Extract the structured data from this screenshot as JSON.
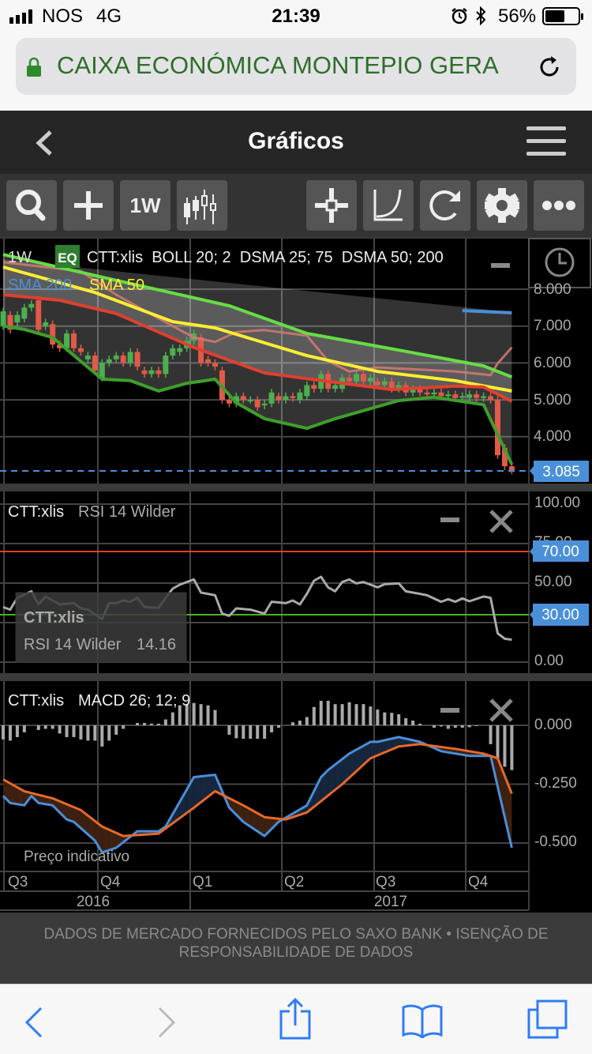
{
  "status_bar": {
    "carrier": "NOS",
    "network": "4G",
    "time": "21:39",
    "battery": "56%",
    "battery_level": 0.56,
    "icons": [
      "signal-icon",
      "alarm-icon",
      "bluetooth-icon",
      "battery-icon"
    ]
  },
  "browser": {
    "url_text": "CAIXA ECONÓMICA MONTEPIO GERA",
    "secure": true,
    "lock_color": "#2f8a2a"
  },
  "header": {
    "title": "Gráficos"
  },
  "toolbar": {
    "period_label": "1W",
    "buttons": [
      "search-icon",
      "add-icon",
      "period-button",
      "candlestick-icon",
      "crosshair-icon",
      "curve-icon",
      "refresh-icon",
      "gear-icon",
      "more-icon"
    ]
  },
  "main_panel": {
    "period": "1W",
    "badge": "EQ",
    "legend": "CTT:xlis  BOLL 20; 2  DSMA 25; 75  DSMA 50; 200",
    "sma200_label": "SMA 200",
    "sma50_label": "SMA 50",
    "yticks": [
      "8.000",
      "7.000",
      "6.000",
      "5.000",
      "4.000"
    ],
    "last_price": "3.085"
  },
  "rsi_panel": {
    "symbol": "CTT:xlis",
    "label": "RSI 14 Wilder",
    "yticks": [
      "100.00",
      "75.00",
      "50.00",
      "0.00"
    ],
    "upper_level": "70.00",
    "lower_level": "30.00",
    "tooltip": {
      "symbol": "CTT:xlis",
      "label": "RSI 14 Wilder",
      "value": "14.16"
    }
  },
  "macd_panel": {
    "symbol": "CTT:xlis",
    "label": "MACD 26; 12; 9",
    "yticks": [
      "0.000",
      "-0.250",
      "-0.500"
    ],
    "note": "Preço indicativo"
  },
  "time_axis": {
    "quarters": [
      "Q3",
      "Q4",
      "Q1",
      "Q2",
      "Q3",
      "Q4"
    ],
    "years": [
      "2016",
      "2017"
    ]
  },
  "footer": {
    "line1": "DADOS DE MERCADO FORNECIDOS PELO SAXO BANK • ISENÇÃO DE",
    "line2": "RESPONSABILIDADE DE DADOS"
  },
  "colors": {
    "accent": "#4a90d9",
    "up": "#4caf50",
    "down": "#e05a4a",
    "boll_upper": "#66dd44",
    "boll_lower": "#3f9f2a",
    "sma50": "#ffee33",
    "dsma": "#e04030",
    "dsma_upper": "#d77a72",
    "sma200": "#4a8fd8",
    "macd": "#4a8fd8",
    "signal": "#e8692a"
  },
  "chart_data": [
    {
      "type": "candlestick",
      "period": "1W",
      "weeks": {
        "from": "2016-W26",
        "to": "2017-W46"
      },
      "ylim": [
        2.73,
        9.37
      ],
      "grid": true,
      "candles_open_close": [
        [
          7.0,
          7.4
        ],
        [
          7.3,
          6.9
        ],
        [
          7.1,
          7.3
        ],
        [
          7.2,
          7.5
        ],
        [
          7.5,
          7.6
        ],
        [
          7.7,
          6.9
        ],
        [
          7.0,
          7.1
        ],
        [
          7.05,
          6.5
        ],
        [
          6.5,
          6.4
        ],
        [
          6.4,
          6.8
        ],
        [
          6.8,
          6.4
        ],
        [
          6.4,
          6.3
        ],
        [
          6.1,
          6.2
        ],
        [
          6.2,
          5.8
        ],
        [
          5.6,
          6.0
        ],
        [
          6.0,
          6.1
        ],
        [
          6.1,
          6.2
        ],
        [
          6.2,
          6.0
        ],
        [
          6.0,
          6.3
        ],
        [
          6.3,
          5.9
        ],
        [
          5.8,
          5.7
        ],
        [
          5.7,
          5.8
        ],
        [
          5.8,
          5.7
        ],
        [
          5.7,
          6.2
        ],
        [
          6.2,
          6.4
        ],
        [
          6.3,
          6.4
        ],
        [
          6.4,
          6.6
        ],
        [
          6.6,
          6.8
        ],
        [
          6.7,
          6.0
        ],
        [
          6.1,
          6.0
        ],
        [
          6.0,
          5.9
        ],
        [
          5.8,
          5.0
        ],
        [
          5.0,
          4.9
        ],
        [
          4.9,
          5.1
        ],
        [
          5.1,
          5.0
        ],
        [
          5.0,
          5.0
        ],
        [
          5.0,
          4.8
        ],
        [
          4.85,
          4.9
        ],
        [
          4.9,
          5.2
        ],
        [
          5.1,
          5.0
        ],
        [
          5.0,
          5.1
        ],
        [
          5.1,
          5.05
        ],
        [
          5.0,
          5.2
        ],
        [
          5.1,
          5.4
        ],
        [
          5.4,
          5.3
        ],
        [
          5.3,
          5.7
        ],
        [
          5.7,
          5.3
        ],
        [
          5.3,
          5.4
        ],
        [
          5.3,
          5.6
        ],
        [
          5.6,
          5.5
        ],
        [
          5.5,
          5.7
        ],
        [
          5.7,
          5.5
        ],
        [
          5.5,
          5.6
        ],
        [
          5.5,
          5.4
        ],
        [
          5.4,
          5.5
        ],
        [
          5.5,
          5.3
        ],
        [
          5.3,
          5.4
        ],
        [
          5.4,
          5.2
        ],
        [
          5.2,
          5.3
        ],
        [
          5.3,
          5.2
        ],
        [
          5.2,
          5.15
        ],
        [
          5.15,
          5.2
        ],
        [
          5.2,
          5.1
        ],
        [
          5.1,
          5.15
        ],
        [
          5.15,
          5.05
        ],
        [
          5.1,
          5.1
        ],
        [
          5.05,
          5.15
        ],
        [
          5.15,
          5.05
        ],
        [
          5.05,
          5.1
        ],
        [
          5.1,
          5.0
        ],
        [
          5.0,
          3.5
        ],
        [
          3.7,
          3.2
        ],
        [
          3.2,
          3.085
        ]
      ],
      "series": [
        {
          "key": "boll_upper",
          "points": [
            [
              "2016-W26",
              8.94
            ],
            [
              "2016-W42",
              8.24
            ],
            [
              "2017-W06",
              7.55
            ],
            [
              "2017-W17",
              6.8
            ],
            [
              "2017-W30",
              6.35
            ],
            [
              "2017-W42",
              5.92
            ],
            [
              "2017-W46",
              5.62
            ]
          ]
        },
        {
          "key": "sma50",
          "name": "SMA 50",
          "points": [
            [
              "2016-W26",
              8.6
            ],
            [
              "2016-W39",
              7.91
            ],
            [
              "2016-W50",
              7.12
            ],
            [
              "2017-W04",
              6.95
            ],
            [
              "2017-W17",
              6.2
            ],
            [
              "2017-W27",
              5.77
            ],
            [
              "2017-W38",
              5.52
            ],
            [
              "2017-W46",
              5.24
            ]
          ]
        },
        {
          "key": "dsma",
          "points": [
            [
              "2016-W26",
              7.85
            ],
            [
              "2016-W34",
              7.7
            ],
            [
              "2016-W42",
              7.34
            ],
            [
              "2017-W01",
              6.42
            ],
            [
              "2017-W11",
              5.73
            ],
            [
              "2017-W22",
              5.45
            ],
            [
              "2017-W29",
              5.28
            ],
            [
              "2017-W38",
              5.37
            ],
            [
              "2017-W42",
              5.35
            ],
            [
              "2017-W46",
              4.96
            ]
          ]
        },
        {
          "key": "boll_lower",
          "points": [
            [
              "2016-W26",
              7.0
            ],
            [
              "2016-W29",
              6.91
            ],
            [
              "2016-W33",
              6.69
            ],
            [
              "2016-W40",
              5.56
            ],
            [
              "2016-W44",
              5.52
            ],
            [
              "2016-W48",
              5.24
            ],
            [
              "2016-W52",
              5.45
            ],
            [
              "2017-W04",
              5.56
            ],
            [
              "2017-W07",
              4.92
            ],
            [
              "2017-W11",
              4.49
            ],
            [
              "2017-W17",
              4.23
            ],
            [
              "2017-W21",
              4.49
            ],
            [
              "2017-W30",
              4.98
            ],
            [
              "2017-W35",
              5.07
            ],
            [
              "2017-W42",
              4.87
            ],
            [
              "2017-W44",
              4.06
            ],
            [
              "2017-W46",
              3.25
            ]
          ]
        },
        {
          "key": "dsma_upper",
          "points": [
            [
              "2016-W26",
              8.73
            ],
            [
              "2016-W37",
              8.49
            ],
            [
              "2016-W42",
              7.85
            ],
            [
              "2016-W48",
              7.21
            ],
            [
              "2017-W01",
              6.69
            ],
            [
              "2017-W04",
              6.57
            ],
            [
              "2017-W07",
              6.84
            ],
            [
              "2017-W11",
              6.89
            ],
            [
              "2017-W17",
              6.74
            ],
            [
              "2017-W20",
              6.05
            ],
            [
              "2017-W23",
              5.77
            ],
            [
              "2017-W27",
              5.88
            ],
            [
              "2017-W38",
              5.77
            ],
            [
              "2017-W43",
              5.67
            ],
            [
              "2017-W44",
              5.99
            ],
            [
              "2017-W46",
              6.42
            ]
          ]
        },
        {
          "key": "sma200",
          "name": "SMA 200",
          "points": [
            [
              "2017-W39",
              7.42
            ],
            [
              "2017-W46",
              7.36
            ]
          ]
        },
        {
          "key": "envelope_top",
          "points": [
            [
              "2016-W26",
              8.8
            ],
            [
              "2017-W46",
              7.38
            ]
          ]
        }
      ]
    },
    {
      "type": "line",
      "name": "RSI 14 Wilder",
      "ylim": [
        0,
        100
      ],
      "levels": [
        70,
        30
      ],
      "points": [
        [
          "2016-W26",
          34.8
        ],
        [
          "2016-W27",
          33.2
        ],
        [
          "2016-W28",
          40.7
        ],
        [
          "2016-W30",
          44.8
        ],
        [
          "2016-W31",
          36.5
        ],
        [
          "2016-W32",
          41.5
        ],
        [
          "2016-W34",
          36.5
        ],
        [
          "2016-W36",
          37.3
        ],
        [
          "2016-W37",
          34
        ],
        [
          "2016-W38",
          33.2
        ],
        [
          "2016-W40",
          27.3
        ],
        [
          "2016-W41",
          37.3
        ],
        [
          "2016-W42",
          37.3
        ],
        [
          "2016-W43",
          39
        ],
        [
          "2016-W44",
          38.2
        ],
        [
          "2016-W45",
          40.7
        ],
        [
          "2016-W46",
          34.8
        ],
        [
          "2016-W48",
          34.3
        ],
        [
          "2016-W49",
          40.7
        ],
        [
          "2016-W50",
          46.5
        ],
        [
          "2016-W51",
          49
        ],
        [
          "2017-W01",
          52.3
        ],
        [
          "2017-W02",
          44
        ],
        [
          "2017-W04",
          42.3
        ],
        [
          "2017-W05",
          30.7
        ],
        [
          "2017-W06",
          29.3
        ],
        [
          "2017-W07",
          34
        ],
        [
          "2017-W09",
          33.2
        ],
        [
          "2017-W11",
          30.7
        ],
        [
          "2017-W12",
          38.2
        ],
        [
          "2017-W14",
          37.3
        ],
        [
          "2017-W15",
          39
        ],
        [
          "2017-W16",
          36.5
        ],
        [
          "2017-W17",
          43.2
        ],
        [
          "2017-W18",
          51.5
        ],
        [
          "2017-W19",
          54
        ],
        [
          "2017-W20",
          47.3
        ],
        [
          "2017-W21",
          44.8
        ],
        [
          "2017-W22",
          50.7
        ],
        [
          "2017-W23",
          52.3
        ],
        [
          "2017-W24",
          49.8
        ],
        [
          "2017-W25",
          50.7
        ],
        [
          "2017-W27",
          47.3
        ],
        [
          "2017-W28",
          49.3
        ],
        [
          "2017-W30",
          49.8
        ],
        [
          "2017-W31",
          44.8
        ],
        [
          "2017-W33",
          43.2
        ],
        [
          "2017-W34",
          42.3
        ],
        [
          "2017-W36",
          38.2
        ],
        [
          "2017-W37",
          39.8
        ],
        [
          "2017-W38",
          38.2
        ],
        [
          "2017-W39",
          40.3
        ],
        [
          "2017-W40",
          38.5
        ],
        [
          "2017-W42",
          41.5
        ],
        [
          "2017-W43",
          40.7
        ],
        [
          "2017-W44",
          18.2
        ],
        [
          "2017-W45",
          14.8
        ],
        [
          "2017-W46",
          14.16
        ]
      ]
    },
    {
      "type": "line",
      "name": "MACD 26; 12; 9",
      "ylim": [
        -0.61,
        0.19
      ],
      "macd": [
        [
          "2016-W26",
          -0.3
        ],
        [
          "2016-W27",
          -0.33
        ],
        [
          "2016-W29",
          -0.34
        ],
        [
          "2016-W30",
          -0.3
        ],
        [
          "2016-W31",
          -0.33
        ],
        [
          "2016-W33",
          -0.34
        ],
        [
          "2016-W35",
          -0.4
        ],
        [
          "2016-W36",
          -0.41
        ],
        [
          "2016-W39",
          -0.49
        ],
        [
          "2016-W40",
          -0.54
        ],
        [
          "2016-W42",
          -0.52
        ],
        [
          "2016-W45",
          -0.45
        ],
        [
          "2016-W46",
          -0.45
        ],
        [
          "2016-W48",
          -0.45
        ],
        [
          "2016-W49",
          -0.43
        ],
        [
          "2017-W01",
          -0.22
        ],
        [
          "2017-W04",
          -0.21
        ],
        [
          "2017-W06",
          -0.35
        ],
        [
          "2017-W08",
          -0.41
        ],
        [
          "2017-W11",
          -0.47
        ],
        [
          "2017-W13",
          -0.41
        ],
        [
          "2017-W17",
          -0.34
        ],
        [
          "2017-W19",
          -0.22
        ],
        [
          "2017-W20",
          -0.19
        ],
        [
          "2017-W23",
          -0.12
        ],
        [
          "2017-W26",
          -0.07
        ],
        [
          "2017-W27",
          -0.07
        ],
        [
          "2017-W30",
          -0.05
        ],
        [
          "2017-W33",
          -0.07
        ],
        [
          "2017-W36",
          -0.11
        ],
        [
          "2017-W38",
          -0.12
        ],
        [
          "2017-W40",
          -0.13
        ],
        [
          "2017-W43",
          -0.13
        ],
        [
          "2017-W45",
          -0.39
        ],
        [
          "2017-W46",
          -0.52
        ]
      ],
      "signal": [
        [
          "2016-W26",
          -0.23
        ],
        [
          "2016-W29",
          -0.28
        ],
        [
          "2016-W33",
          -0.31
        ],
        [
          "2016-W37",
          -0.36
        ],
        [
          "2016-W40",
          -0.43
        ],
        [
          "2016-W43",
          -0.47
        ],
        [
          "2016-W48",
          -0.46
        ],
        [
          "2017-W01",
          -0.35
        ],
        [
          "2017-W04",
          -0.28
        ],
        [
          "2017-W08",
          -0.34
        ],
        [
          "2017-W11",
          -0.39
        ],
        [
          "2017-W14",
          -0.4
        ],
        [
          "2017-W17",
          -0.37
        ],
        [
          "2017-W22",
          -0.25
        ],
        [
          "2017-W26",
          -0.14
        ],
        [
          "2017-W30",
          -0.09
        ],
        [
          "2017-W33",
          -0.08
        ],
        [
          "2017-W38",
          -0.1
        ],
        [
          "2017-W42",
          -0.12
        ],
        [
          "2017-W44",
          -0.14
        ],
        [
          "2017-W46",
          -0.29
        ]
      ],
      "histogram": [
        -0.06,
        -0.065,
        -0.05,
        -0.03,
        0,
        -0.02,
        -0.015,
        -0.015,
        -0.035,
        -0.05,
        -0.05,
        -0.06,
        -0.065,
        -0.065,
        -0.09,
        -0.065,
        -0.04,
        -0.015,
        0,
        0.01,
        0.01,
        0.007,
        0.007,
        0.025,
        0.055,
        0.085,
        0.09,
        0.095,
        0.09,
        0.085,
        0.065,
        0,
        -0.04,
        -0.055,
        -0.057,
        -0.057,
        -0.057,
        -0.057,
        -0.03,
        -0.01,
        0,
        0.013,
        0.02,
        0.035,
        0.078,
        0.104,
        0.104,
        0.09,
        0.09,
        0.098,
        0.09,
        0.09,
        0.08,
        0.067,
        0.055,
        0.053,
        0.047,
        0.03,
        0.02,
        0.007,
        0,
        -0.01,
        -0.005,
        -0.015,
        -0.01,
        -0.01,
        -0.008,
        -0.003,
        0,
        -0.08,
        -0.144,
        -0.176,
        -0.19
      ]
    }
  ]
}
